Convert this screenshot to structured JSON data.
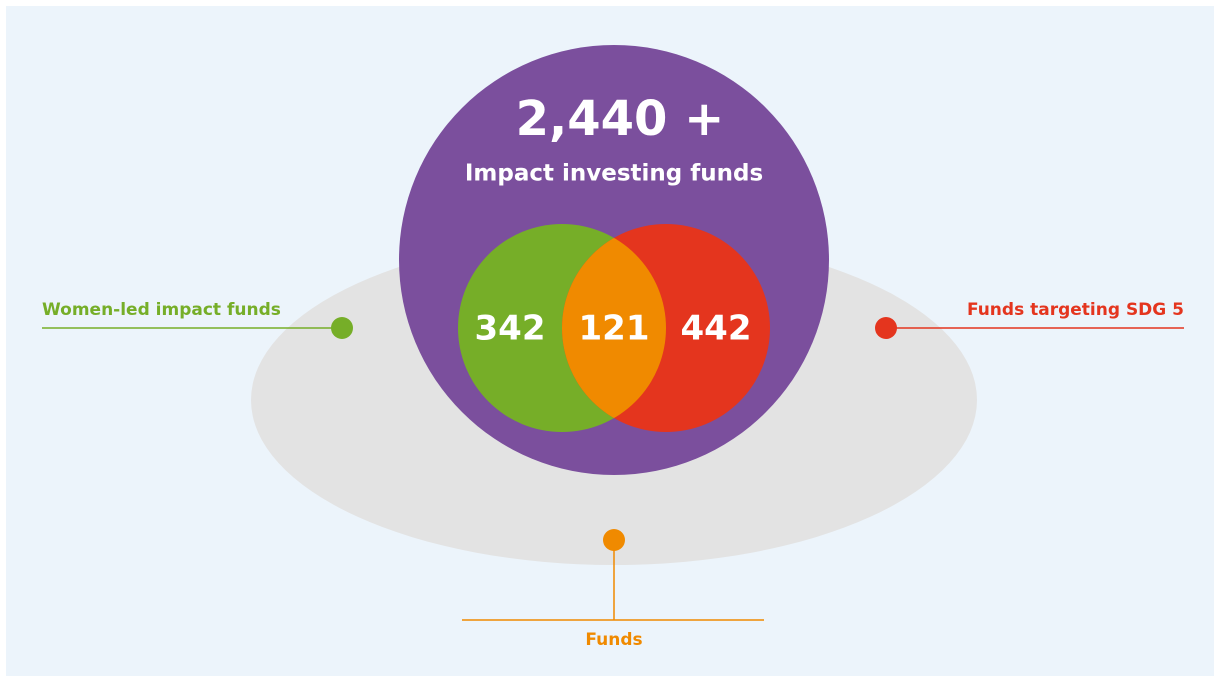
{
  "total": {
    "value": "2,440 +",
    "label": "Impact investing funds"
  },
  "sets": [
    {
      "label": "Women-led impact funds",
      "value": "342"
    },
    {
      "label": "Funds targeting SDG 5",
      "value": "442"
    }
  ],
  "overlap": {
    "label": "Funds",
    "value": "121"
  }
}
